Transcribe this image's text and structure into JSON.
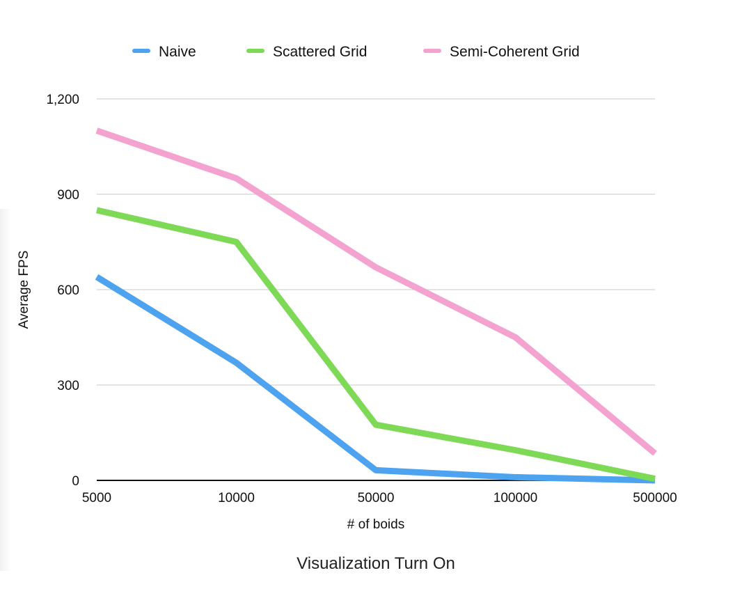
{
  "chart_data": {
    "type": "line",
    "title": "",
    "caption": "Visualization Turn On",
    "xlabel": "# of boids",
    "ylabel": "Average FPS",
    "x_categories": [
      "5000",
      "10000",
      "50000",
      "100000",
      "500000"
    ],
    "ylim": [
      0,
      1200
    ],
    "y_ticks": [
      0,
      300,
      600,
      900,
      1200
    ],
    "y_tick_labels": [
      "0",
      "300",
      "600",
      "900",
      "1,200"
    ],
    "grid": true,
    "legend_position": "top",
    "series": [
      {
        "name": "Naive",
        "color": "#4da3ef",
        "values": [
          640,
          370,
          32,
          10,
          0
        ]
      },
      {
        "name": "Scattered Grid",
        "color": "#7ed957",
        "values": [
          850,
          750,
          175,
          95,
          5
        ]
      },
      {
        "name": "Semi-Coherent Grid",
        "color": "#f4a2cf",
        "values": [
          1100,
          950,
          670,
          450,
          85
        ]
      }
    ]
  }
}
